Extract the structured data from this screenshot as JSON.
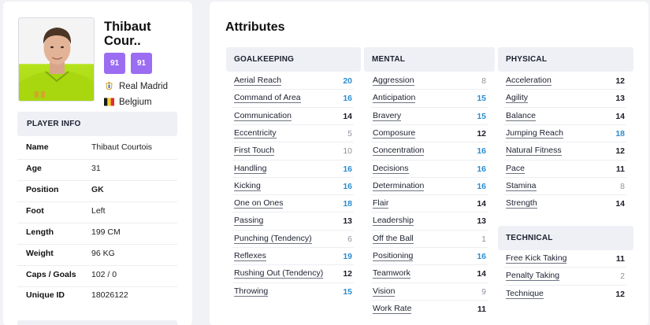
{
  "player": {
    "name_line1": "Thibaut",
    "name_line2": "Cour..",
    "ratings": [
      "91",
      "91"
    ],
    "club": "Real Madrid",
    "nation": "Belgium"
  },
  "info": {
    "header": "PLAYER INFO",
    "rows": [
      {
        "label": "Name",
        "value": "Thibaut Courtois"
      },
      {
        "label": "Age",
        "value": "31"
      },
      {
        "label": "Position",
        "value": "GK"
      },
      {
        "label": "Foot",
        "value": "Left"
      },
      {
        "label": "Length",
        "value": "199 CM"
      },
      {
        "label": "Weight",
        "value": "96 KG"
      },
      {
        "label": "Caps / Goals",
        "value": "102 / 0"
      },
      {
        "label": "Unique ID",
        "value": "18026122"
      }
    ]
  },
  "attributes": {
    "title": "Attributes",
    "goalkeeping": {
      "header": "GOALKEEPING",
      "items": [
        {
          "name": "Aerial Reach",
          "value": "20"
        },
        {
          "name": "Command of Area",
          "value": "16"
        },
        {
          "name": "Communication",
          "value": "14"
        },
        {
          "name": "Eccentricity",
          "value": "5"
        },
        {
          "name": "First Touch",
          "value": "10"
        },
        {
          "name": "Handling",
          "value": "16"
        },
        {
          "name": "Kicking",
          "value": "16"
        },
        {
          "name": "One on Ones",
          "value": "18"
        },
        {
          "name": "Passing",
          "value": "13"
        },
        {
          "name": "Punching (Tendency)",
          "value": "6"
        },
        {
          "name": "Reflexes",
          "value": "19"
        },
        {
          "name": "Rushing Out (Tendency)",
          "value": "12"
        },
        {
          "name": "Throwing",
          "value": "15"
        }
      ]
    },
    "mental": {
      "header": "MENTAL",
      "items": [
        {
          "name": "Aggression",
          "value": "8"
        },
        {
          "name": "Anticipation",
          "value": "15"
        },
        {
          "name": "Bravery",
          "value": "15"
        },
        {
          "name": "Composure",
          "value": "12"
        },
        {
          "name": "Concentration",
          "value": "16"
        },
        {
          "name": "Decisions",
          "value": "16"
        },
        {
          "name": "Determination",
          "value": "16"
        },
        {
          "name": "Flair",
          "value": "14"
        },
        {
          "name": "Leadership",
          "value": "13"
        },
        {
          "name": "Off the Ball",
          "value": "1"
        },
        {
          "name": "Positioning",
          "value": "16"
        },
        {
          "name": "Teamwork",
          "value": "14"
        },
        {
          "name": "Vision",
          "value": "9"
        },
        {
          "name": "Work Rate",
          "value": "11"
        }
      ]
    },
    "physical": {
      "header": "PHYSICAL",
      "items": [
        {
          "name": "Acceleration",
          "value": "12"
        },
        {
          "name": "Agility",
          "value": "13"
        },
        {
          "name": "Balance",
          "value": "14"
        },
        {
          "name": "Jumping Reach",
          "value": "18"
        },
        {
          "name": "Natural Fitness",
          "value": "12"
        },
        {
          "name": "Pace",
          "value": "11"
        },
        {
          "name": "Stamina",
          "value": "8"
        },
        {
          "name": "Strength",
          "value": "14"
        }
      ]
    },
    "technical": {
      "header": "TECHNICAL",
      "items": [
        {
          "name": "Free Kick Taking",
          "value": "11"
        },
        {
          "name": "Penalty Taking",
          "value": "2"
        },
        {
          "name": "Technique",
          "value": "12"
        }
      ]
    }
  },
  "colors": {
    "rating_badge": "#9b6df2",
    "high_value": "#2a8dcf",
    "low_value": "#8e939d",
    "header_bg": "#eef0f5"
  }
}
